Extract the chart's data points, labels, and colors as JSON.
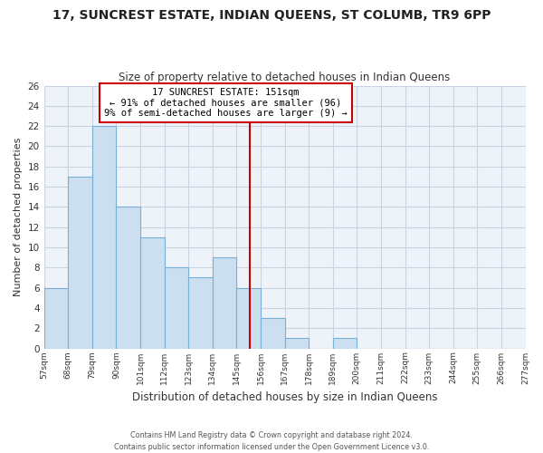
{
  "title": "17, SUNCREST ESTATE, INDIAN QUEENS, ST COLUMB, TR9 6PP",
  "subtitle": "Size of property relative to detached houses in Indian Queens",
  "xlabel": "Distribution of detached houses by size in Indian Queens",
  "ylabel": "Number of detached properties",
  "bar_color": "#ccdff0",
  "bar_edge_color": "#7aafd4",
  "vline_color": "#cc0000",
  "vline_x": 151,
  "bins": [
    57,
    68,
    79,
    90,
    101,
    112,
    123,
    134,
    145,
    156,
    167,
    178,
    189,
    200,
    211,
    222,
    233,
    244,
    255,
    266,
    277
  ],
  "counts": [
    6,
    17,
    22,
    14,
    11,
    8,
    7,
    9,
    6,
    3,
    1,
    0,
    1,
    0,
    0,
    0,
    0,
    0,
    0,
    0
  ],
  "ylim": [
    0,
    26
  ],
  "yticks": [
    0,
    2,
    4,
    6,
    8,
    10,
    12,
    14,
    16,
    18,
    20,
    22,
    24,
    26
  ],
  "annotation_title": "17 SUNCREST ESTATE: 151sqm",
  "annotation_line1": "← 91% of detached houses are smaller (96)",
  "annotation_line2": "9% of semi-detached houses are larger (9) →",
  "footnote1": "Contains HM Land Registry data © Crown copyright and database right 2024.",
  "footnote2": "Contains public sector information licensed under the Open Government Licence v3.0.",
  "background_color": "#ffffff",
  "plot_bg_color": "#eef3f9",
  "grid_color": "#c8d4e4"
}
